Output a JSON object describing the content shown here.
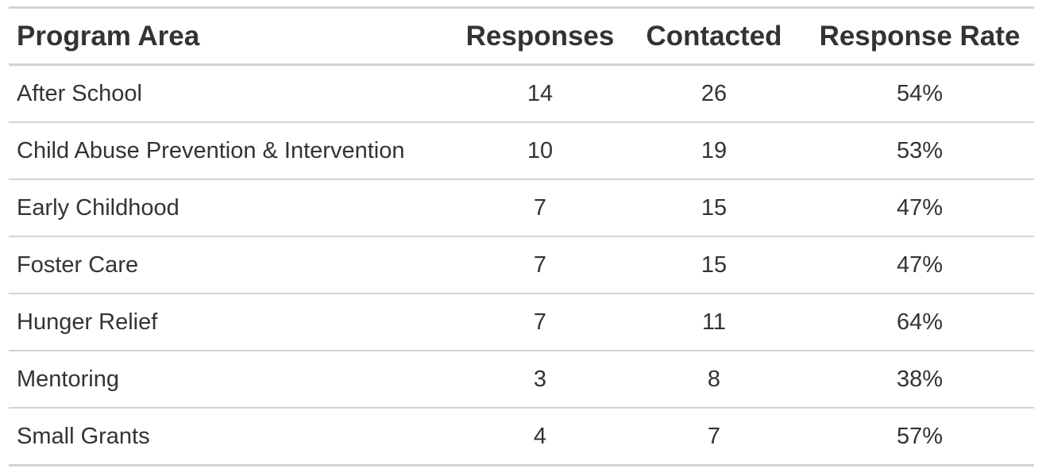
{
  "chart_data": {
    "type": "table",
    "columns": [
      "Program Area",
      "Responses",
      "Contacted",
      "Response Rate"
    ],
    "rows": [
      {
        "program": "After School",
        "responses": "14",
        "contacted": "26",
        "rate": "54%"
      },
      {
        "program": "Child Abuse Prevention & Intervention",
        "responses": "10",
        "contacted": "19",
        "rate": "53%"
      },
      {
        "program": "Early Childhood",
        "responses": "7",
        "contacted": "15",
        "rate": "47%"
      },
      {
        "program": "Foster Care",
        "responses": "7",
        "contacted": "15",
        "rate": "47%"
      },
      {
        "program": "Hunger Relief",
        "responses": "7",
        "contacted": "11",
        "rate": "64%"
      },
      {
        "program": "Mentoring",
        "responses": "3",
        "contacted": "8",
        "rate": "38%"
      },
      {
        "program": "Small Grants",
        "responses": "4",
        "contacted": "7",
        "rate": "57%"
      }
    ]
  }
}
